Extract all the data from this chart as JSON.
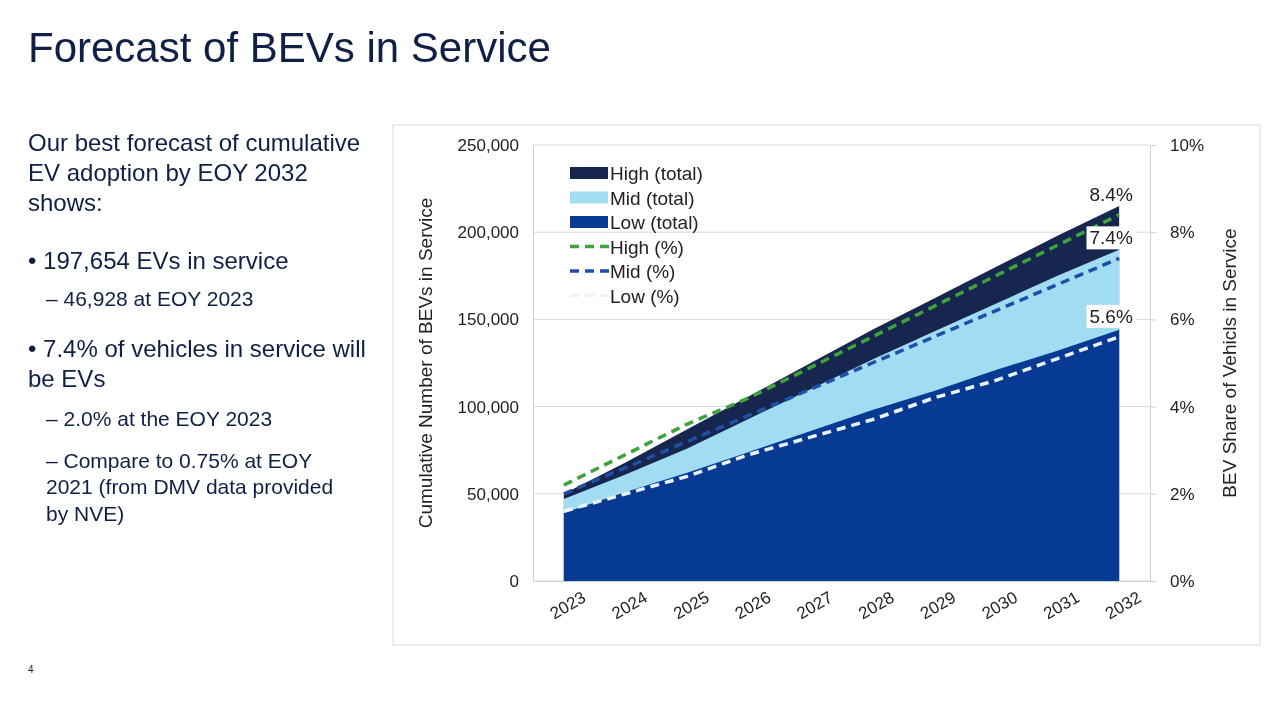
{
  "chart_data": {
    "type": "area",
    "title": "Forecast of BEVs in Service",
    "ylabel": "Cumulative Number of BEVs in Service",
    "y2label": "BEV Share of Vehicls in Service",
    "categories": [
      "2023",
      "2024",
      "2025",
      "2026",
      "2027",
      "2028",
      "2029",
      "2030",
      "2031",
      "2032"
    ],
    "series": [
      {
        "name": "High (total)",
        "color": "#16264f",
        "values": [
          50000,
          68000,
          87000,
          106000,
          125000,
          144000,
          162000,
          180000,
          198000,
          215000
        ]
      },
      {
        "name": "Mid (total)",
        "color": "#a0dcf2",
        "values": [
          47000,
          61000,
          76000,
          93000,
          110000,
          127000,
          143000,
          159000,
          175000,
          190000
        ]
      },
      {
        "name": "Low (total)",
        "color": "#063a93",
        "values": [
          39000,
          51000,
          62000,
          74000,
          86000,
          98000,
          109000,
          121000,
          132000,
          144000
        ]
      },
      {
        "name": "High (%)",
        "type": "line",
        "axis": "y2",
        "line_style": "dashed",
        "color": "#3fa33a",
        "values": [
          2.2,
          2.9,
          3.6,
          4.2,
          4.9,
          5.6,
          6.3,
          7.0,
          7.7,
          8.4
        ],
        "value_labels": [
          null,
          null,
          null,
          null,
          null,
          null,
          null,
          null,
          null,
          "8.4%"
        ]
      },
      {
        "name": "Mid (%)",
        "type": "line",
        "axis": "y2",
        "line_style": "dashed",
        "color": "#1f4fa8",
        "values": [
          2.0,
          2.6,
          3.2,
          3.8,
          4.4,
          5.0,
          5.6,
          6.2,
          6.8,
          7.4
        ],
        "value_labels": [
          null,
          null,
          null,
          null,
          null,
          null,
          null,
          null,
          null,
          "7.4%"
        ]
      },
      {
        "name": "Low (%)",
        "type": "line",
        "axis": "y2",
        "line_style": "dashed",
        "color": "#eaf4fa",
        "values": [
          1.6,
          2.0,
          2.4,
          2.9,
          3.3,
          3.7,
          4.2,
          4.6,
          5.1,
          5.6
        ],
        "value_labels": [
          null,
          null,
          null,
          null,
          null,
          null,
          null,
          null,
          null,
          "5.6%"
        ]
      }
    ],
    "ylim": [
      0,
      250000
    ],
    "yticks": [
      {
        "value": 0,
        "label": "0"
      },
      {
        "value": 50000,
        "label": "50,000"
      },
      {
        "value": 100000,
        "label": "100,000"
      },
      {
        "value": 150000,
        "label": "150,000"
      },
      {
        "value": 200000,
        "label": "200,000"
      },
      {
        "value": 250000,
        "label": "250,000"
      }
    ],
    "y2lim": [
      0,
      10
    ],
    "y2ticks": [
      {
        "value": 0,
        "label": "0%"
      },
      {
        "value": 2,
        "label": "2%"
      },
      {
        "value": 4,
        "label": "4%"
      },
      {
        "value": 6,
        "label": "6%"
      },
      {
        "value": 8,
        "label": "8%"
      },
      {
        "value": 10,
        "label": "10%"
      }
    ],
    "grid": "y",
    "legend": "top left",
    "annotations": [
      "Our best forecast of cumulative EV adoption by EOY 2032 shows:",
      "• 197,654 EVs in service",
      "– 46,928 at EOY 2023",
      "• 7.4% of vehicles in service will be EVs",
      "– 2.0% at the EOY 2023",
      "– Compare to 0.75% at EOY 2021 (from DMV data provided by NVE)",
      "4"
    ]
  }
}
